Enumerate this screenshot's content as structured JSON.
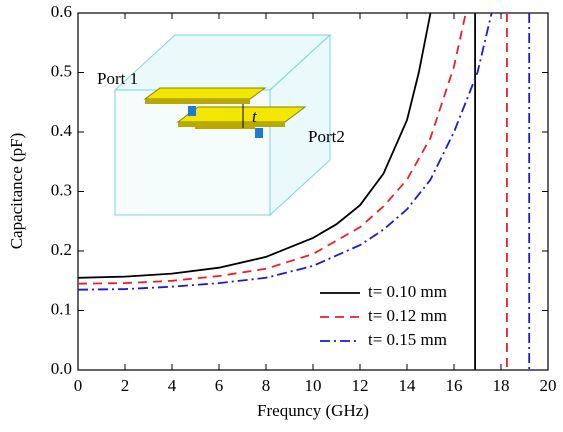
{
  "chart_data": {
    "type": "line",
    "xlabel": "Frequncy (GHz)",
    "ylabel": "Capacitance (pF)",
    "xlim": [
      0,
      20
    ],
    "ylim": [
      0,
      0.6
    ],
    "xticks": [
      0,
      2,
      4,
      6,
      8,
      10,
      12,
      14,
      16,
      18,
      20
    ],
    "yticks": [
      {
        "value": 0,
        "label": "0.0"
      },
      0.1,
      0.2,
      0.3,
      0.4,
      0.5,
      0.6
    ],
    "legend": "lower right",
    "annotations": [
      "Port 1",
      "Port2",
      "t"
    ],
    "series": [
      {
        "name": "t= 0.10 mm",
        "color": "#000000",
        "dash": "none",
        "x": [
          0,
          2,
          4,
          6,
          8,
          10,
          11,
          12,
          13,
          14,
          14.5,
          15,
          null,
          16.9,
          16.9
        ],
        "values": [
          0.155,
          0.157,
          0.162,
          0.172,
          0.19,
          0.222,
          0.245,
          0.277,
          0.33,
          0.42,
          0.5,
          0.6,
          null,
          0.6,
          0.0
        ]
      },
      {
        "name": "t= 0.12 mm",
        "color": "#e8202a",
        "dash": "9,6",
        "x": [
          0,
          2,
          4,
          6,
          8,
          10,
          12,
          13,
          14,
          15,
          16,
          16.5,
          null,
          18.25,
          18.25
        ],
        "values": [
          0.145,
          0.146,
          0.15,
          0.158,
          0.17,
          0.195,
          0.24,
          0.275,
          0.32,
          0.39,
          0.51,
          0.6,
          null,
          0.6,
          0.0
        ]
      },
      {
        "name": "t= 0.15 mm",
        "color": "#1a1ad6",
        "dash": "10,4,2,4",
        "x": [
          0,
          2,
          4,
          6,
          8,
          10,
          12,
          13,
          14,
          15,
          16,
          17,
          17.6,
          null,
          19.2,
          19.2
        ],
        "values": [
          0.135,
          0.136,
          0.14,
          0.146,
          0.155,
          0.175,
          0.21,
          0.236,
          0.27,
          0.32,
          0.4,
          0.5,
          0.6,
          null,
          0.6,
          0.0
        ]
      }
    ]
  }
}
